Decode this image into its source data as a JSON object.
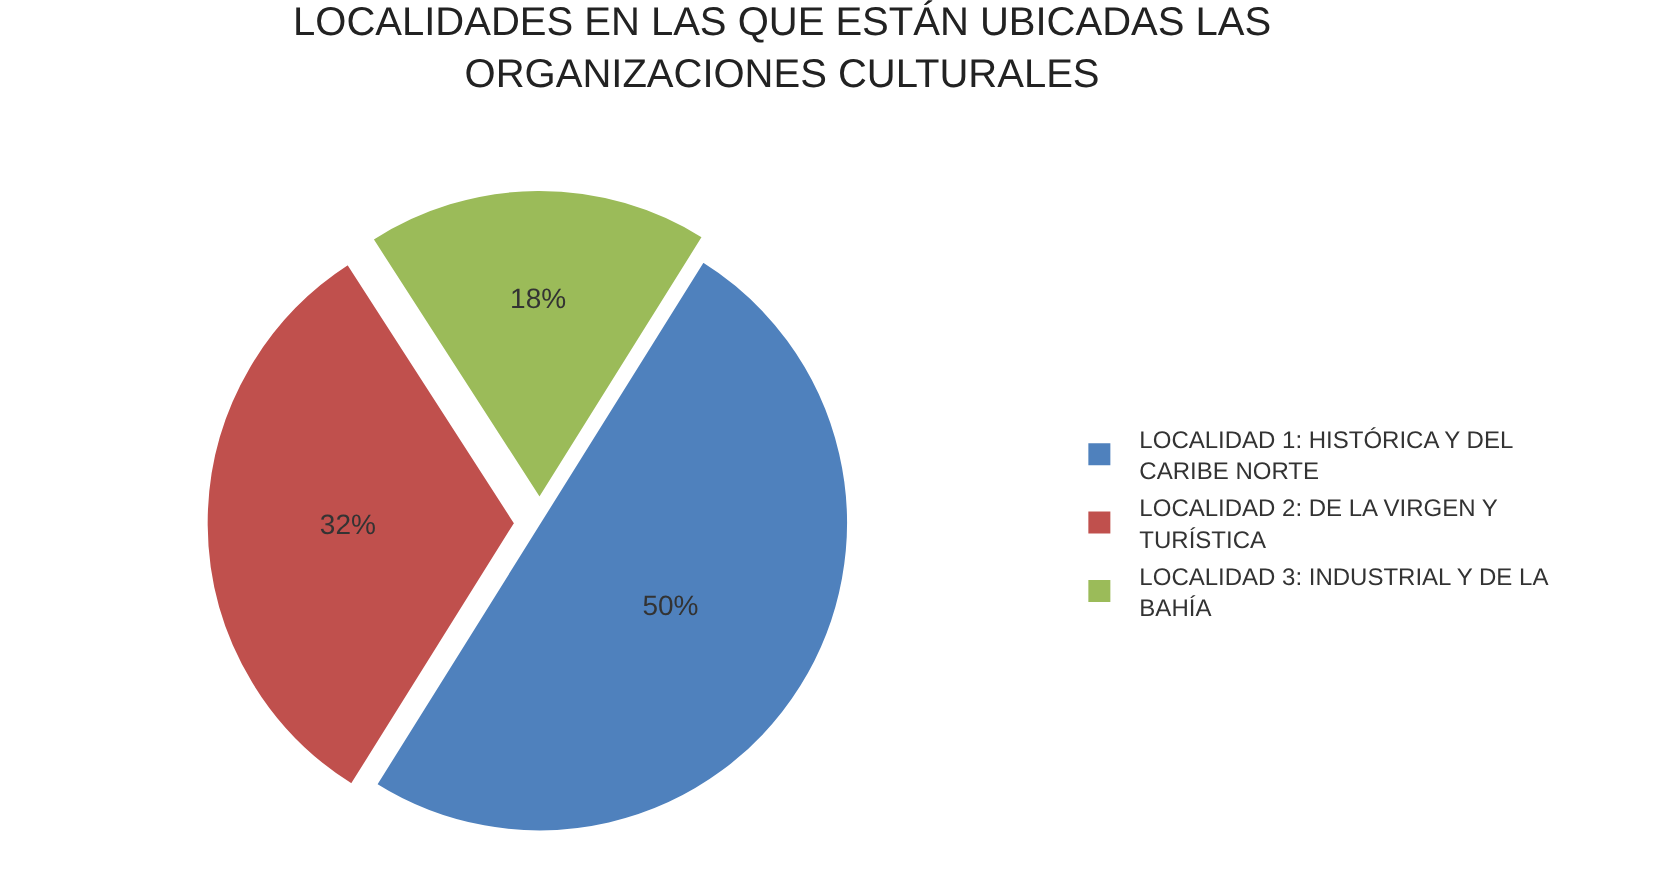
{
  "chart_data": {
    "type": "pie",
    "title": "LOCALIDADES EN LAS QUE ESTÁN UBICADAS LAS ORGANIZACIONES CULTURALES",
    "categories": [
      "LOCALIDAD 1: HISTÓRICA Y DEL CARIBE NORTE",
      "LOCALIDAD 2: DE LA VIRGEN Y TURÍSTICA",
      "LOCALIDAD 3: INDUSTRIAL Y DE LA BAHÍA"
    ],
    "values": [
      50,
      32,
      18
    ],
    "value_labels": [
      "50%",
      "32%",
      "18%"
    ],
    "colors": [
      "#4f81bd",
      "#c0504d",
      "#9bbb59"
    ],
    "legend": "right"
  }
}
